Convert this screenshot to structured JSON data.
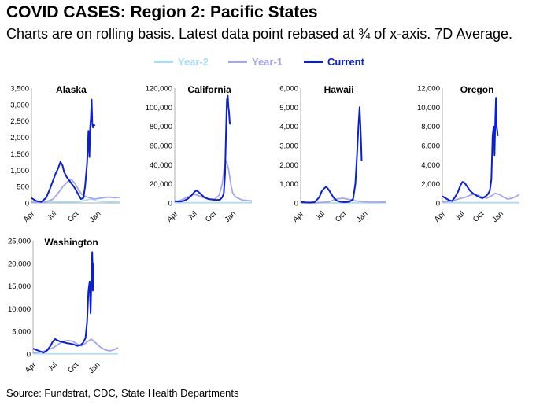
{
  "header": {
    "title": "COVID CASES: Region 2: Pacific States",
    "subtitle": "Charts are on rolling basis. Latest data point rebased at ¾ of x-axis. 7D Average."
  },
  "legend": [
    {
      "label": "Year-2",
      "color": "#a9def5"
    },
    {
      "label": "Year-1",
      "color": "#a6a6f0"
    },
    {
      "label": "Current",
      "color": "#0a1fd4"
    }
  ],
  "footer": {
    "source": "Source: Fundstrat, CDC, State Health Departments"
  },
  "chart_data": [
    {
      "type": "line",
      "title": "Alaska",
      "x_ticks": [
        "Apr",
        "Jul",
        "Oct",
        "Jan"
      ],
      "y_ticks": [
        "0",
        "500",
        "1,000",
        "1,500",
        "2,000",
        "2,500",
        "3,000",
        "3,500"
      ],
      "ylim": [
        0,
        3500
      ],
      "x_range": [
        0,
        365
      ],
      "series": [
        {
          "name": "Year-2",
          "x": [
            0,
            60,
            120,
            180,
            200,
            220,
            250,
            270,
            300,
            330,
            365
          ],
          "y": [
            40,
            35,
            30,
            30,
            40,
            80,
            120,
            60,
            40,
            30,
            40
          ]
        },
        {
          "name": "Year-1",
          "x": [
            0,
            30,
            60,
            90,
            110,
            130,
            150,
            165,
            180,
            195,
            210,
            230,
            260,
            290,
            320,
            345,
            365
          ],
          "y": [
            20,
            10,
            30,
            120,
            300,
            500,
            650,
            720,
            600,
            400,
            250,
            180,
            120,
            150,
            180,
            160,
            170
          ]
        },
        {
          "name": "Current",
          "x": [
            0,
            10,
            20,
            40,
            60,
            75,
            90,
            100,
            110,
            120,
            128,
            135,
            145,
            155,
            165,
            175,
            185,
            195,
            205,
            215,
            222,
            230,
            236,
            240,
            243,
            246,
            249,
            252,
            255,
            258,
            262
          ],
          "y": [
            150,
            100,
            60,
            30,
            150,
            400,
            700,
            900,
            1050,
            1250,
            1150,
            950,
            800,
            700,
            600,
            500,
            380,
            250,
            120,
            150,
            500,
            1200,
            2200,
            1400,
            2300,
            2600,
            3150,
            2400,
            2300,
            2400,
            2350
          ]
        }
      ]
    },
    {
      "type": "line",
      "title": "California",
      "x_ticks": [
        "Apr",
        "Jul",
        "Oct",
        "Jan"
      ],
      "y_ticks": [
        "0",
        "20,000",
        "40,000",
        "60,000",
        "80,000",
        "100,000",
        "120,000"
      ],
      "ylim": [
        0,
        120000
      ],
      "x_range": [
        0,
        365
      ],
      "series": [
        {
          "name": "Year-2",
          "x": [
            0,
            100,
            200,
            260,
            300,
            365
          ],
          "y": [
            300,
            300,
            300,
            300,
            300,
            300
          ]
        },
        {
          "name": "Year-1",
          "x": [
            0,
            30,
            60,
            90,
            110,
            130,
            160,
            190,
            210,
            225,
            235,
            245,
            255,
            265,
            275,
            290,
            320,
            365
          ],
          "y": [
            1000,
            3000,
            6000,
            9000,
            8000,
            6000,
            4000,
            4000,
            8000,
            20000,
            38000,
            44000,
            35000,
            20000,
            10000,
            6000,
            3000,
            2000
          ]
        },
        {
          "name": "Current",
          "x": [
            0,
            20,
            40,
            60,
            80,
            95,
            105,
            115,
            125,
            140,
            160,
            180,
            200,
            215,
            225,
            232,
            238,
            243,
            247,
            251,
            254,
            257,
            260,
            262
          ],
          "y": [
            2000,
            1500,
            2000,
            4000,
            8000,
            12000,
            13000,
            11000,
            9000,
            6000,
            4000,
            3500,
            3000,
            3500,
            6000,
            10000,
            30000,
            75000,
            108000,
            112000,
            100000,
            95000,
            85000,
            82000
          ]
        }
      ]
    },
    {
      "type": "line",
      "title": "Hawaii",
      "x_ticks": [
        "Apr",
        "Jul",
        "Oct",
        "Jan"
      ],
      "y_ticks": [
        "0",
        "1,000",
        "2,000",
        "3,000",
        "4,000",
        "5,000",
        "6,000"
      ],
      "ylim": [
        0,
        6000
      ],
      "x_range": [
        0,
        365
      ],
      "series": [
        {
          "name": "Year-2",
          "x": [
            0,
            100,
            200,
            300,
            365
          ],
          "y": [
            5,
            5,
            5,
            5,
            5
          ]
        },
        {
          "name": "Year-1",
          "x": [
            0,
            30,
            60,
            90,
            120,
            150,
            180,
            210,
            240,
            270,
            300,
            330,
            365
          ],
          "y": [
            10,
            5,
            10,
            30,
            50,
            200,
            250,
            180,
            100,
            60,
            40,
            40,
            50
          ]
        },
        {
          "name": "Current",
          "x": [
            0,
            20,
            40,
            60,
            80,
            90,
            100,
            110,
            120,
            130,
            140,
            155,
            170,
            190,
            210,
            225,
            235,
            242,
            248,
            253,
            257,
            260,
            262
          ],
          "y": [
            50,
            30,
            20,
            40,
            300,
            600,
            750,
            850,
            700,
            500,
            300,
            120,
            60,
            40,
            60,
            200,
            1000,
            2500,
            4000,
            5000,
            4000,
            3000,
            2200
          ]
        }
      ]
    },
    {
      "type": "line",
      "title": "Oregon",
      "x_ticks": [
        "Apr",
        "Jul",
        "Oct",
        "Jan"
      ],
      "y_ticks": [
        "0",
        "2,000",
        "4,000",
        "6,000",
        "8,000",
        "10,000",
        "12,000"
      ],
      "ylim": [
        0,
        12000
      ],
      "x_range": [
        0,
        365
      ],
      "series": [
        {
          "name": "Year-2",
          "x": [
            0,
            100,
            200,
            300,
            365
          ],
          "y": [
            50,
            50,
            50,
            50,
            50
          ]
        },
        {
          "name": "Year-1",
          "x": [
            0,
            30,
            60,
            90,
            110,
            130,
            150,
            170,
            190,
            210,
            230,
            250,
            270,
            290,
            310,
            330,
            350,
            365
          ],
          "y": [
            100,
            150,
            300,
            500,
            600,
            800,
            900,
            800,
            600,
            500,
            700,
            1000,
            900,
            600,
            400,
            500,
            700,
            900
          ]
        },
        {
          "name": "Current",
          "x": [
            0,
            15,
            30,
            45,
            60,
            75,
            85,
            95,
            105,
            115,
            130,
            145,
            160,
            175,
            190,
            205,
            215,
            225,
            232,
            238,
            243,
            247,
            251,
            254,
            257,
            260,
            262
          ],
          "y": [
            700,
            500,
            300,
            200,
            600,
            1200,
            1800,
            2200,
            2100,
            1800,
            1300,
            1000,
            800,
            600,
            500,
            700,
            900,
            1300,
            2500,
            7000,
            8000,
            5000,
            9000,
            11000,
            8000,
            7500,
            7000
          ]
        }
      ]
    },
    {
      "type": "line",
      "title": "Washington",
      "x_ticks": [
        "Apr",
        "Jul",
        "Oct",
        "Jan"
      ],
      "y_ticks": [
        "0",
        "5,000",
        "10,000",
        "15,000",
        "20,000",
        "25,000"
      ],
      "ylim": [
        0,
        25000
      ],
      "x_range": [
        0,
        365
      ],
      "series": [
        {
          "name": "Year-2",
          "x": [
            0,
            100,
            200,
            300,
            365
          ],
          "y": [
            50,
            50,
            50,
            50,
            50
          ]
        },
        {
          "name": "Year-1",
          "x": [
            0,
            30,
            60,
            90,
            110,
            130,
            150,
            170,
            190,
            210,
            230,
            250,
            270,
            290,
            310,
            330,
            350,
            365
          ],
          "y": [
            300,
            400,
            800,
            1500,
            2200,
            2800,
            3000,
            2800,
            2200,
            1800,
            2600,
            3300,
            2400,
            1500,
            900,
            700,
            1000,
            1400
          ]
        },
        {
          "name": "Current",
          "x": [
            0,
            15,
            30,
            45,
            60,
            75,
            85,
            95,
            105,
            115,
            130,
            145,
            160,
            175,
            190,
            205,
            215,
            225,
            232,
            238,
            243,
            247,
            251,
            254,
            257,
            260,
            262
          ],
          "y": [
            1200,
            900,
            600,
            300,
            800,
            1800,
            2800,
            3300,
            3000,
            2800,
            2600,
            2400,
            2300,
            2100,
            1800,
            2000,
            2500,
            3500,
            7000,
            14000,
            16000,
            9000,
            17000,
            22500,
            14000,
            20000,
            20000
          ]
        }
      ]
    }
  ]
}
